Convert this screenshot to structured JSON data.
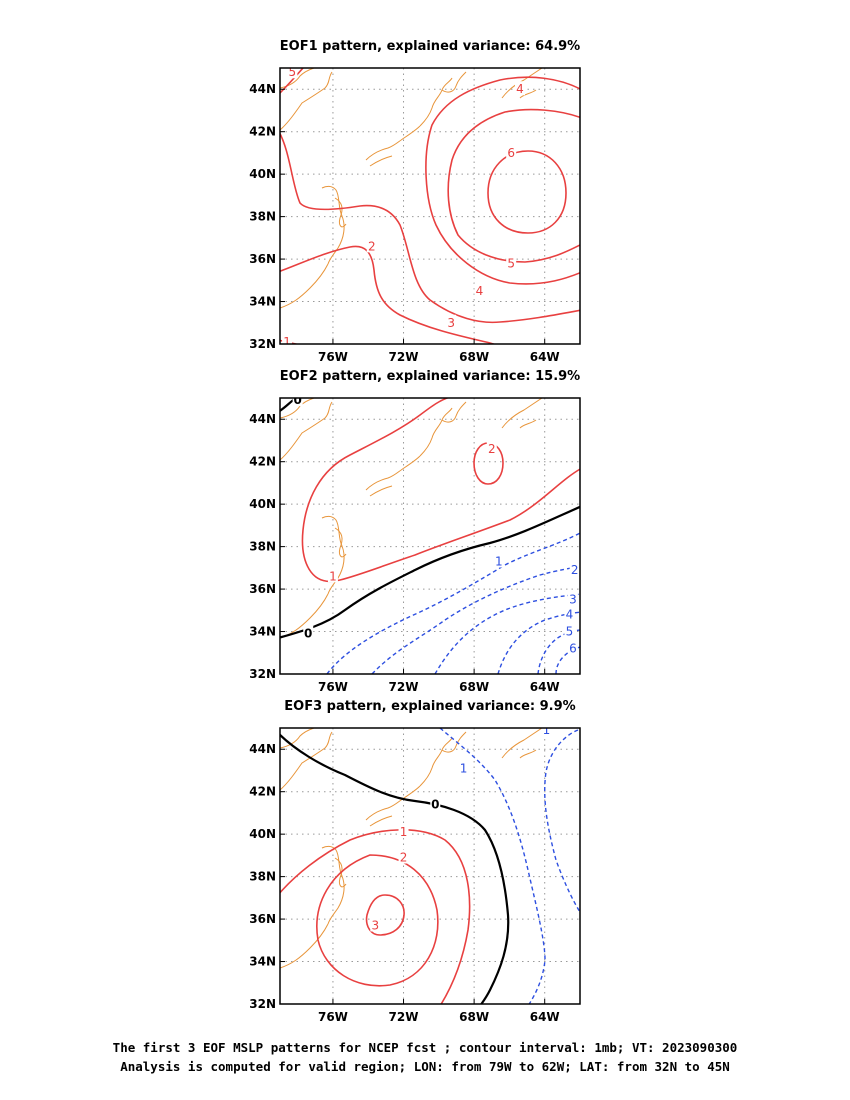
{
  "figure": {
    "footer_line1": "The first 3 EOF MSLP patterns for NCEP fcst ; contour interval: 1mb; VT: 2023090300",
    "footer_line2": "Analysis is computed for valid region; LON: from 79W to 62W; LAT: from 32N to 45N"
  },
  "colors": {
    "positive": "#e84040",
    "negative": "#2d4fe0",
    "zero": "#000000",
    "coast": "#e8953a",
    "grid": "#9a9a9a"
  },
  "chart_data": [
    {
      "type": "contour",
      "title": "EOF1 pattern, explained variance: 64.9%",
      "lon_ticks": [
        "76W",
        "72W",
        "68W",
        "64W"
      ],
      "lat_ticks": [
        "44N",
        "42N",
        "40N",
        "38N",
        "36N",
        "34N",
        "32N"
      ],
      "lon_range": [
        -79,
        -62
      ],
      "lat_range": [
        32,
        45
      ],
      "contour_labels": [
        {
          "text": "5",
          "lon": -78.3,
          "lat": 44.8,
          "kind": "pos"
        },
        {
          "text": "4",
          "lon": -65.4,
          "lat": 44.0,
          "kind": "pos"
        },
        {
          "text": "6",
          "lon": -65.9,
          "lat": 41.0,
          "kind": "pos"
        },
        {
          "text": "2",
          "lon": -73.8,
          "lat": 36.6,
          "kind": "pos"
        },
        {
          "text": "5",
          "lon": -65.9,
          "lat": 35.8,
          "kind": "pos"
        },
        {
          "text": "4",
          "lon": -67.7,
          "lat": 34.5,
          "kind": "pos"
        },
        {
          "text": "3",
          "lon": -69.3,
          "lat": 33.0,
          "kind": "pos"
        },
        {
          "text": "1",
          "lon": -78.6,
          "lat": 32.1,
          "kind": "pos"
        }
      ]
    },
    {
      "type": "contour",
      "title": "EOF2 pattern, explained variance: 15.9%",
      "lon_ticks": [
        "76W",
        "72W",
        "68W",
        "64W"
      ],
      "lat_ticks": [
        "44N",
        "42N",
        "40N",
        "38N",
        "36N",
        "34N",
        "32N"
      ],
      "lon_range": [
        -79,
        -62
      ],
      "lat_range": [
        32,
        45
      ],
      "contour_labels": [
        {
          "text": "0",
          "lon": -78.0,
          "lat": 44.9,
          "kind": "zero"
        },
        {
          "text": "2",
          "lon": -67.0,
          "lat": 42.6,
          "kind": "pos"
        },
        {
          "text": "1",
          "lon": -66.6,
          "lat": 37.3,
          "kind": "neg"
        },
        {
          "text": "2",
          "lon": -62.3,
          "lat": 36.9,
          "kind": "neg"
        },
        {
          "text": "1",
          "lon": -76.0,
          "lat": 36.6,
          "kind": "pos"
        },
        {
          "text": "3",
          "lon": -62.4,
          "lat": 35.5,
          "kind": "neg"
        },
        {
          "text": "4",
          "lon": -62.6,
          "lat": 34.8,
          "kind": "neg"
        },
        {
          "text": "0",
          "lon": -77.4,
          "lat": 33.9,
          "kind": "zero"
        },
        {
          "text": "5",
          "lon": -62.6,
          "lat": 34.0,
          "kind": "neg"
        },
        {
          "text": "6",
          "lon": -62.4,
          "lat": 33.2,
          "kind": "neg"
        }
      ]
    },
    {
      "type": "contour",
      "title": "EOF3 pattern, explained variance: 9.9%",
      "lon_ticks": [
        "76W",
        "72W",
        "68W",
        "64W"
      ],
      "lat_ticks": [
        "44N",
        "42N",
        "40N",
        "38N",
        "36N",
        "34N",
        "32N"
      ],
      "lon_range": [
        -79,
        -62
      ],
      "lat_range": [
        32,
        45
      ],
      "contour_labels": [
        {
          "text": "1",
          "lon": -63.9,
          "lat": 44.9,
          "kind": "neg"
        },
        {
          "text": "1",
          "lon": -68.6,
          "lat": 43.1,
          "kind": "neg"
        },
        {
          "text": "0",
          "lon": -70.2,
          "lat": 41.4,
          "kind": "zero"
        },
        {
          "text": "1",
          "lon": -72.0,
          "lat": 40.1,
          "kind": "pos"
        },
        {
          "text": "2",
          "lon": -72.0,
          "lat": 38.9,
          "kind": "pos"
        },
        {
          "text": "3",
          "lon": -73.6,
          "lat": 35.7,
          "kind": "pos"
        }
      ]
    }
  ]
}
